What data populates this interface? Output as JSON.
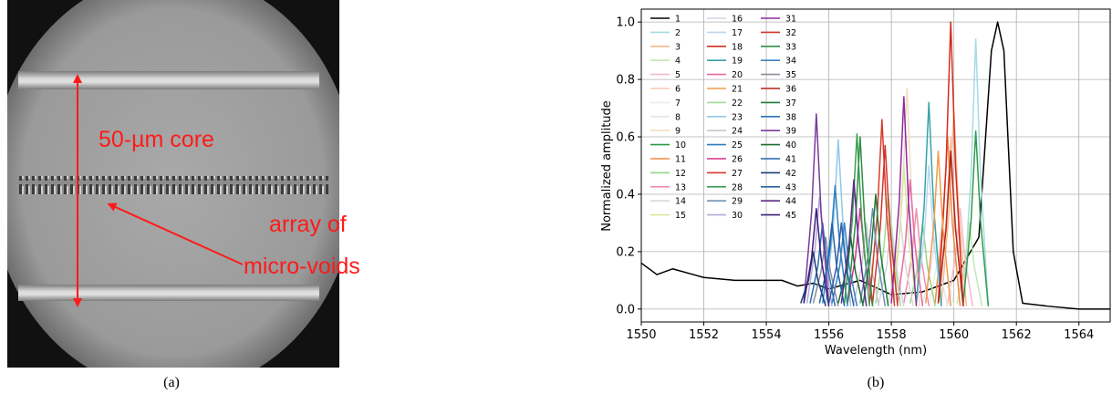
{
  "panel_a": {
    "annotations": [
      "50-µm core",
      "array of",
      "micro-voids"
    ],
    "caption": "(a)"
  },
  "chart_data": {
    "type": "line",
    "caption": "(b)",
    "xlabel": "Wavelength (nm)",
    "ylabel": "Normalized amplitude",
    "xlim": [
      1550,
      1565
    ],
    "ylim": [
      -0.045,
      1.045
    ],
    "xticks": [
      1550,
      1552,
      1554,
      1556,
      1558,
      1560,
      1562,
      1564
    ],
    "yticks": [
      {
        "value": 0,
        "label": "0.0"
      },
      {
        "value": 0.2,
        "label": "0.2"
      },
      {
        "value": 0.4,
        "label": "0.4"
      },
      {
        "value": 0.6,
        "label": "0.6"
      },
      {
        "value": 0.8,
        "label": "0.8"
      },
      {
        "value": 1.0,
        "label": "1.0"
      }
    ],
    "grid": true,
    "legend": "upper left",
    "series": [
      {
        "name": "1",
        "color": "#000000",
        "x": [
          1550,
          1550.5,
          1551,
          1552,
          1553,
          1554,
          1554.5,
          1555,
          1555.5,
          1556,
          1557,
          1558,
          1559,
          1560,
          1560.8,
          1561.2,
          1561.4,
          1561.6,
          1561.9,
          1562.2,
          1563,
          1564,
          1565
        ],
        "values": [
          0.16,
          0.12,
          0.14,
          0.11,
          0.1,
          0.1,
          0.1,
          0.08,
          0.09,
          0.07,
          0.1,
          0.05,
          0.06,
          0.1,
          0.25,
          0.9,
          1.0,
          0.9,
          0.2,
          0.02,
          0.01,
          0.0,
          0.0
        ]
      },
      {
        "name": "2",
        "color": "#a6dbe3",
        "x": [
          1560.3,
          1560.55,
          1560.7,
          1560.85,
          1561.1
        ],
        "values": [
          0.02,
          0.47,
          0.94,
          0.47,
          0.01
        ]
      },
      {
        "name": "3",
        "color": "#f5b98a",
        "x": [
          1559.6,
          1559.85,
          1560.0,
          1560.15,
          1560.4
        ],
        "values": [
          0.02,
          0.35,
          0.69,
          0.35,
          0.01
        ]
      },
      {
        "name": "4",
        "color": "#c4e6b5",
        "x": [
          1560.1,
          1560.35,
          1560.5,
          1560.65,
          1560.9
        ],
        "values": [
          0.02,
          0.15,
          0.3,
          0.15,
          0.01
        ]
      },
      {
        "name": "5",
        "color": "#f4b8c8",
        "x": [
          1559.8,
          1560.05,
          1560.2,
          1560.35,
          1560.6
        ],
        "values": [
          0.02,
          0.18,
          0.35,
          0.18,
          0.01
        ]
      },
      {
        "name": "6",
        "color": "#f7c6b0",
        "x": [
          1559.5,
          1559.75,
          1559.9,
          1560.05,
          1560.3
        ],
        "values": [
          0.02,
          0.3,
          0.6,
          0.3,
          0.01
        ]
      },
      {
        "name": "7",
        "color": "#ececec",
        "x": [
          1559.2,
          1559.45,
          1559.6,
          1559.75,
          1560.0
        ],
        "values": [
          0.02,
          0.15,
          0.3,
          0.15,
          0.01
        ]
      },
      {
        "name": "8",
        "color": "#e4e4ec",
        "x": [
          1559.0,
          1559.25,
          1559.4,
          1559.55,
          1559.8
        ],
        "values": [
          0.02,
          0.13,
          0.25,
          0.13,
          0.01
        ]
      },
      {
        "name": "9",
        "color": "#f3dcc0",
        "x": [
          1558.1,
          1558.35,
          1558.5,
          1558.65,
          1558.9
        ],
        "values": [
          0.02,
          0.39,
          0.77,
          0.39,
          0.01
        ]
      },
      {
        "name": "10",
        "color": "#2e9b4a",
        "x": [
          1560.3,
          1560.55,
          1560.7,
          1560.85,
          1561.1
        ],
        "values": [
          0.02,
          0.31,
          0.62,
          0.31,
          0.01
        ]
      },
      {
        "name": "11",
        "color": "#f08a3c",
        "x": [
          1559.4,
          1559.65,
          1559.8,
          1559.95,
          1560.2
        ],
        "values": [
          0.02,
          0.3,
          0.6,
          0.3,
          0.01
        ]
      },
      {
        "name": "12",
        "color": "#93d68a",
        "x": [
          1558.6,
          1558.85,
          1559.0,
          1559.15,
          1559.4
        ],
        "values": [
          0.02,
          0.15,
          0.3,
          0.15,
          0.01
        ]
      },
      {
        "name": "13",
        "color": "#f08fb0",
        "x": [
          1558.4,
          1558.65,
          1558.8,
          1558.95,
          1559.2
        ],
        "values": [
          0.02,
          0.18,
          0.35,
          0.18,
          0.01
        ]
      },
      {
        "name": "14",
        "color": "#d9d9d9",
        "x": [
          1557.9,
          1558.15,
          1558.3,
          1558.45,
          1558.7
        ],
        "values": [
          0.02,
          0.15,
          0.3,
          0.15,
          0.01
        ]
      },
      {
        "name": "15",
        "color": "#d6e89a",
        "x": [
          1558.0,
          1558.25,
          1558.4,
          1558.55,
          1558.8
        ],
        "values": [
          0.02,
          0.25,
          0.5,
          0.25,
          0.01
        ]
      },
      {
        "name": "16",
        "color": "#cfd6e0",
        "x": [
          1557.6,
          1557.85,
          1558.0,
          1558.15,
          1558.4
        ],
        "values": [
          0.02,
          0.15,
          0.3,
          0.15,
          0.01
        ]
      },
      {
        "name": "17",
        "color": "#bcd7ee",
        "x": [
          1558.8,
          1559.05,
          1559.2,
          1559.35,
          1559.6
        ],
        "values": [
          0.02,
          0.25,
          0.5,
          0.25,
          0.01
        ]
      },
      {
        "name": "18",
        "color": "#d62a1e",
        "x": [
          1559.5,
          1559.75,
          1559.9,
          1560.05,
          1560.3
        ],
        "values": [
          0.02,
          0.5,
          1.0,
          0.5,
          0.01
        ]
      },
      {
        "name": "19",
        "color": "#36a3a8",
        "x": [
          1558.8,
          1559.05,
          1559.2,
          1559.35,
          1559.6
        ],
        "values": [
          0.02,
          0.36,
          0.72,
          0.36,
          0.01
        ]
      },
      {
        "name": "20",
        "color": "#e86aa0",
        "x": [
          1558.2,
          1558.45,
          1558.6,
          1558.75,
          1559.0
        ],
        "values": [
          0.02,
          0.23,
          0.45,
          0.23,
          0.01
        ]
      },
      {
        "name": "21",
        "color": "#f29b4a",
        "x": [
          1559.1,
          1559.35,
          1559.5,
          1559.65,
          1559.9
        ],
        "values": [
          0.02,
          0.28,
          0.55,
          0.28,
          0.01
        ]
      },
      {
        "name": "22",
        "color": "#9fdc96",
        "x": [
          1557.5,
          1557.75,
          1557.9,
          1558.05,
          1558.3
        ],
        "values": [
          0.02,
          0.2,
          0.4,
          0.2,
          0.01
        ]
      },
      {
        "name": "23",
        "color": "#8ec9e8",
        "x": [
          1555.9,
          1556.15,
          1556.3,
          1556.45,
          1556.7
        ],
        "values": [
          0.02,
          0.3,
          0.59,
          0.3,
          0.01
        ]
      },
      {
        "name": "24",
        "color": "#c8c8cc",
        "x": [
          1556.8,
          1557.05,
          1557.2,
          1557.35,
          1557.6
        ],
        "values": [
          0.02,
          0.15,
          0.3,
          0.15,
          0.01
        ]
      },
      {
        "name": "25",
        "color": "#2f7fc1",
        "x": [
          1555.8,
          1556.05,
          1556.2,
          1556.35,
          1556.6
        ],
        "values": [
          0.02,
          0.22,
          0.43,
          0.22,
          0.01
        ]
      },
      {
        "name": "26",
        "color": "#d8308a",
        "x": [
          1556.6,
          1556.85,
          1557.0,
          1557.15,
          1557.4
        ],
        "values": [
          0.02,
          0.18,
          0.35,
          0.18,
          0.01
        ]
      },
      {
        "name": "27",
        "color": "#d93a2a",
        "x": [
          1557.3,
          1557.55,
          1557.7,
          1557.85,
          1558.1
        ],
        "values": [
          0.02,
          0.33,
          0.66,
          0.33,
          0.01
        ]
      },
      {
        "name": "28",
        "color": "#3aa04e",
        "x": [
          1556.5,
          1556.75,
          1556.9,
          1557.05,
          1557.3
        ],
        "values": [
          0.02,
          0.31,
          0.61,
          0.31,
          0.01
        ]
      },
      {
        "name": "29",
        "color": "#6f8fb3",
        "x": [
          1557.0,
          1557.25,
          1557.4,
          1557.55,
          1557.8
        ],
        "values": [
          0.02,
          0.18,
          0.35,
          0.18,
          0.01
        ]
      },
      {
        "name": "30",
        "color": "#b5a8d8",
        "x": [
          1555.3,
          1555.55,
          1555.7,
          1555.85,
          1556.1
        ],
        "values": [
          0.02,
          0.2,
          0.39,
          0.2,
          0.01
        ]
      },
      {
        "name": "31",
        "color": "#8e2a9e",
        "x": [
          1558.0,
          1558.25,
          1558.4,
          1558.55,
          1558.8
        ],
        "values": [
          0.02,
          0.37,
          0.74,
          0.37,
          0.01
        ]
      },
      {
        "name": "32",
        "color": "#d2342a",
        "x": [
          1557.4,
          1557.65,
          1557.8,
          1557.95,
          1558.2
        ],
        "values": [
          0.02,
          0.29,
          0.57,
          0.29,
          0.01
        ]
      },
      {
        "name": "33",
        "color": "#2e8f46",
        "x": [
          1556.6,
          1556.85,
          1557.0,
          1557.15,
          1557.4
        ],
        "values": [
          0.02,
          0.3,
          0.6,
          0.3,
          0.01
        ]
      },
      {
        "name": "34",
        "color": "#3b82c4",
        "x": [
          1556.1,
          1556.35,
          1556.5,
          1556.65,
          1556.9
        ],
        "values": [
          0.02,
          0.15,
          0.3,
          0.15,
          0.01
        ]
      },
      {
        "name": "35",
        "color": "#8c8c9c",
        "x": [
          1555.5,
          1555.75,
          1555.9,
          1556.05,
          1556.3
        ],
        "values": [
          0.02,
          0.13,
          0.25,
          0.13,
          0.01
        ]
      },
      {
        "name": "36",
        "color": "#b22418",
        "x": [
          1559.5,
          1559.75,
          1559.9,
          1560.05,
          1560.3
        ],
        "values": [
          0.02,
          0.28,
          0.55,
          0.28,
          0.01
        ]
      },
      {
        "name": "37",
        "color": "#1f7a3a",
        "x": [
          1557.1,
          1557.35,
          1557.5,
          1557.65,
          1557.9
        ],
        "values": [
          0.02,
          0.2,
          0.4,
          0.2,
          0.01
        ]
      },
      {
        "name": "38",
        "color": "#2a6fb3",
        "x": [
          1555.4,
          1555.65,
          1555.8,
          1555.95,
          1556.2
        ],
        "values": [
          0.02,
          0.15,
          0.3,
          0.15,
          0.01
        ]
      },
      {
        "name": "39",
        "color": "#7a3a9e",
        "x": [
          1555.2,
          1555.45,
          1555.6,
          1555.75,
          1556.0
        ],
        "values": [
          0.02,
          0.34,
          0.68,
          0.34,
          0.01
        ]
      },
      {
        "name": "40",
        "color": "#1e6b34",
        "x": [
          1556.3,
          1556.55,
          1556.7,
          1556.85,
          1557.1
        ],
        "values": [
          0.02,
          0.13,
          0.25,
          0.13,
          0.01
        ]
      },
      {
        "name": "41",
        "color": "#2563a8",
        "x": [
          1555.7,
          1555.95,
          1556.1,
          1556.25,
          1556.5
        ],
        "values": [
          0.02,
          0.15,
          0.3,
          0.15,
          0.01
        ]
      },
      {
        "name": "42",
        "color": "#1c3f7a",
        "x": [
          1555.1,
          1555.35,
          1555.5,
          1555.65,
          1555.9
        ],
        "values": [
          0.02,
          0.1,
          0.2,
          0.1,
          0.01
        ]
      },
      {
        "name": "43",
        "color": "#2f5fa8",
        "x": [
          1556.0,
          1556.25,
          1556.4,
          1556.55,
          1556.8
        ],
        "values": [
          0.02,
          0.15,
          0.3,
          0.15,
          0.01
        ]
      },
      {
        "name": "44",
        "color": "#5a2a8a",
        "x": [
          1556.4,
          1556.65,
          1556.8,
          1556.95,
          1557.2
        ],
        "values": [
          0.02,
          0.23,
          0.45,
          0.23,
          0.01
        ]
      },
      {
        "name": "45",
        "color": "#3a1f7a",
        "x": [
          1555.2,
          1555.45,
          1555.6,
          1555.75,
          1556.0
        ],
        "values": [
          0.02,
          0.18,
          0.35,
          0.18,
          0.01
        ]
      }
    ]
  }
}
